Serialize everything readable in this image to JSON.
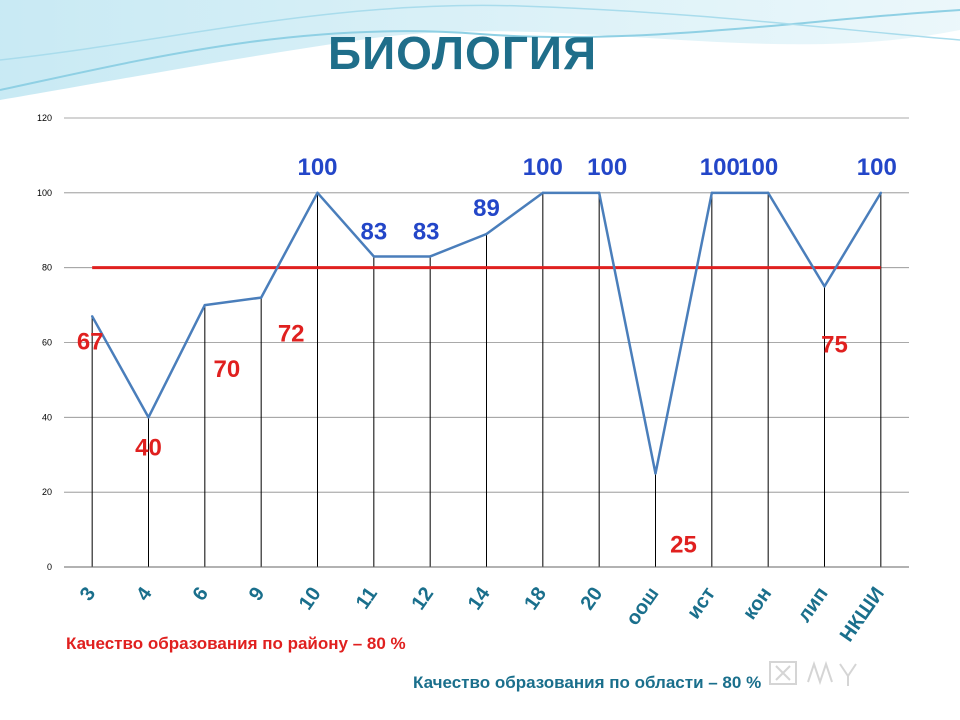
{
  "slide": {
    "title": "БИОЛОГИЯ",
    "note_district": "Качество образования по району – 80 %",
    "note_region": "Качество образования по области – 80 %",
    "watermark_icon": "mysvod-logo-icon",
    "colors": {
      "title": "#1f6e8a",
      "line": "#4a7ebb",
      "reference_line": "#e0201f",
      "label_red": "#e0201f",
      "label_blue": "#2346c8",
      "note_region": "#1a6f8c"
    }
  },
  "chart_data": {
    "type": "line",
    "categories": [
      "3",
      "4",
      "6",
      "9",
      "10",
      "11",
      "12",
      "14",
      "18",
      "20",
      "оош",
      "ист",
      "кон",
      "лип",
      "НКШИ"
    ],
    "series": [
      {
        "values": [
          67,
          40,
          70,
          72,
          100,
          83,
          83,
          89,
          100,
          100,
          25,
          100,
          100,
          75,
          100
        ],
        "data_labels": [
          "67",
          "40",
          "70",
          "72",
          "100",
          "83",
          "83",
          "89",
          "100",
          "100",
          "25",
          "100",
          "100",
          "75",
          "100"
        ],
        "label_colors": [
          "red",
          "red",
          "red",
          "red",
          "blue",
          "blue",
          "blue",
          "blue",
          "blue",
          "blue",
          "red",
          "blue",
          "blue",
          "red",
          "blue"
        ]
      }
    ],
    "reference_line": {
      "value": 80
    },
    "ylim": [
      0,
      120
    ],
    "yticks": [
      "0",
      "20",
      "40",
      "60",
      "80",
      "100",
      "120"
    ],
    "grid": "horizontal",
    "drop_lines": true,
    "legend": "none",
    "xlabel": "",
    "ylabel": ""
  }
}
